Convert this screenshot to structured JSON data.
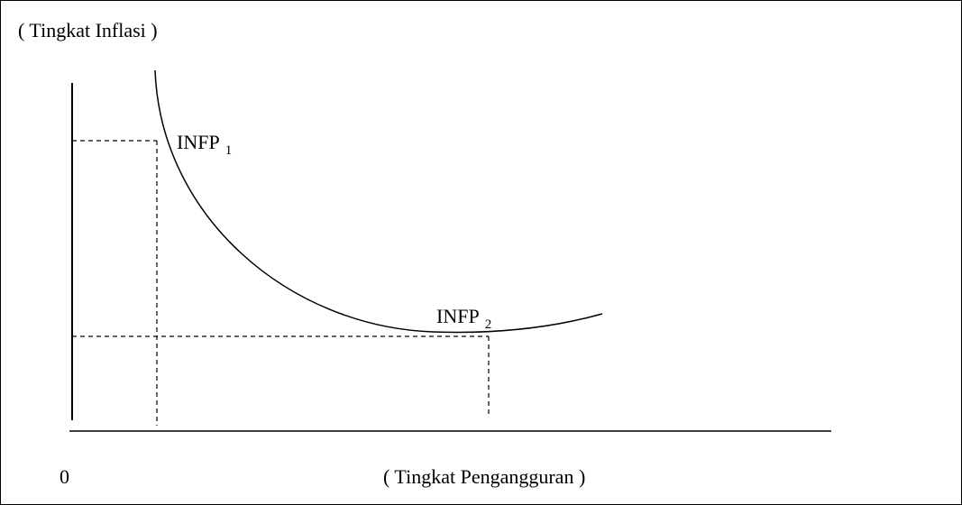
{
  "diagram": {
    "y_axis_label": "( Tingkat Inflasi )",
    "x_axis_label": "( Tingkat Pengangguran )",
    "origin_label": "0",
    "points": [
      {
        "label": "INFP",
        "subscript": "1"
      },
      {
        "label": "INFP",
        "subscript": "2"
      }
    ]
  }
}
